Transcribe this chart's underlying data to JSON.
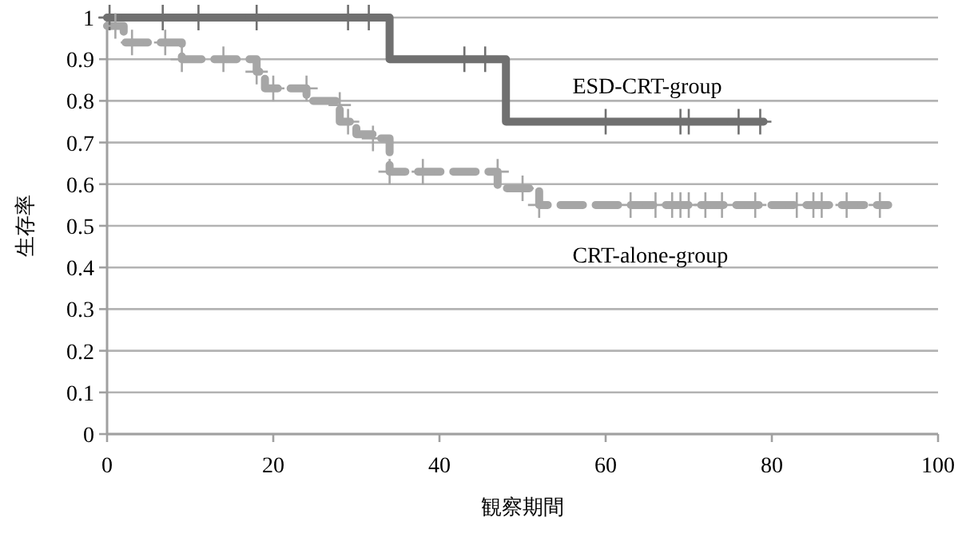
{
  "chart_data": {
    "type": "step",
    "xlabel": "観察期間",
    "ylabel": "生存率",
    "xlim": [
      0,
      100
    ],
    "ylim": [
      0,
      1
    ],
    "xticks": [
      0,
      20,
      40,
      60,
      80,
      100
    ],
    "yticks": [
      0,
      0.1,
      0.2,
      0.3,
      0.4,
      0.5,
      0.6,
      0.7,
      0.8,
      0.9,
      1
    ],
    "grid": "y",
    "series": [
      {
        "name": "ESD-CRT-group",
        "color": "#707070",
        "line_style": "solid",
        "x": [
          0,
          34,
          48,
          79
        ],
        "values": [
          1,
          0.9,
          0.75,
          0.75
        ]
      },
      {
        "name": "CRT-alone-group",
        "color": "#a6a6a6",
        "line_style": "dashed",
        "x": [
          0,
          2,
          9,
          18,
          19,
          24,
          28,
          30,
          32,
          34,
          47,
          52,
          94
        ],
        "values": [
          0.98,
          0.94,
          0.9,
          0.87,
          0.83,
          0.8,
          0.75,
          0.72,
          0.71,
          0.63,
          0.59,
          0.55,
          0.55
        ]
      },
      {
        "type": "scatter",
        "marker": "cross",
        "color": "#707070",
        "x": [
          0.3,
          6.7,
          11,
          18,
          29,
          31.5,
          43,
          45.5,
          60,
          69,
          70,
          76,
          78.6
        ],
        "values": [
          1,
          1,
          1,
          1,
          1,
          1,
          0.9,
          0.9,
          0.75,
          0.75,
          0.75,
          0.75,
          0.75
        ]
      },
      {
        "type": "scatter",
        "marker": "cross",
        "color": "#a6a6a6",
        "x": [
          1,
          3,
          7,
          9,
          14,
          18,
          20,
          24,
          28,
          29,
          32,
          34,
          38,
          47,
          50,
          52,
          63,
          66,
          68,
          69,
          70,
          72,
          74,
          78,
          83,
          85,
          86,
          89,
          93
        ],
        "values": [
          0.98,
          0.94,
          0.94,
          0.9,
          0.9,
          0.87,
          0.83,
          0.83,
          0.79,
          0.75,
          0.71,
          0.63,
          0.63,
          0.63,
          0.59,
          0.55,
          0.55,
          0.55,
          0.55,
          0.55,
          0.55,
          0.55,
          0.55,
          0.55,
          0.55,
          0.55,
          0.55,
          0.55,
          0.55
        ]
      }
    ]
  }
}
